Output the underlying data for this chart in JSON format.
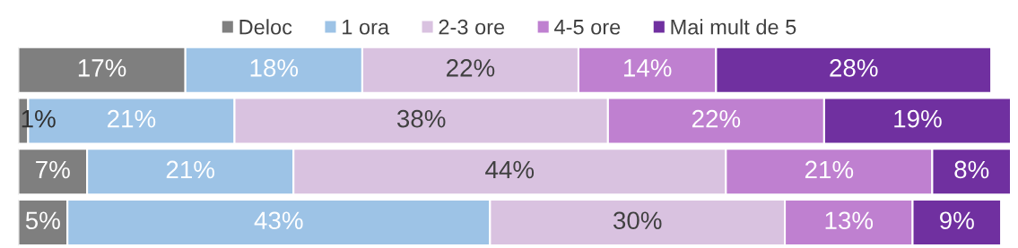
{
  "chart_data": {
    "type": "bar",
    "orientation": "horizontal",
    "stacked": true,
    "categories": [
      null,
      null,
      null,
      null
    ],
    "series": [
      {
        "name": "Deloc",
        "color": "#7f7f7f",
        "values": [
          17,
          1,
          7,
          5
        ],
        "value_labels": [
          "17%",
          "1%",
          "7%",
          "5%"
        ]
      },
      {
        "name": "1 ora",
        "color": "#9dc3e6",
        "values": [
          18,
          21,
          21,
          43
        ],
        "value_labels": [
          "18%",
          "21%",
          "21%",
          "43%"
        ]
      },
      {
        "name": "2-3 ore",
        "color": "#d9c2e0",
        "values": [
          22,
          38,
          44,
          30
        ],
        "value_labels": [
          "22%",
          "38%",
          "44%",
          "30%"
        ]
      },
      {
        "name": "4-5 ore",
        "color": "#bf80d0",
        "values": [
          14,
          22,
          21,
          13
        ],
        "value_labels": [
          "14%",
          "22%",
          "21%",
          "13%"
        ]
      },
      {
        "name": "Mai mult de 5",
        "color": "#7030a0",
        "values": [
          28,
          19,
          8,
          9
        ],
        "value_labels": [
          "28%",
          "19%",
          "8%",
          "9%"
        ]
      }
    ],
    "xlim": [
      0,
      101
    ],
    "tick_labels": false,
    "grid": false,
    "legend": "top"
  }
}
